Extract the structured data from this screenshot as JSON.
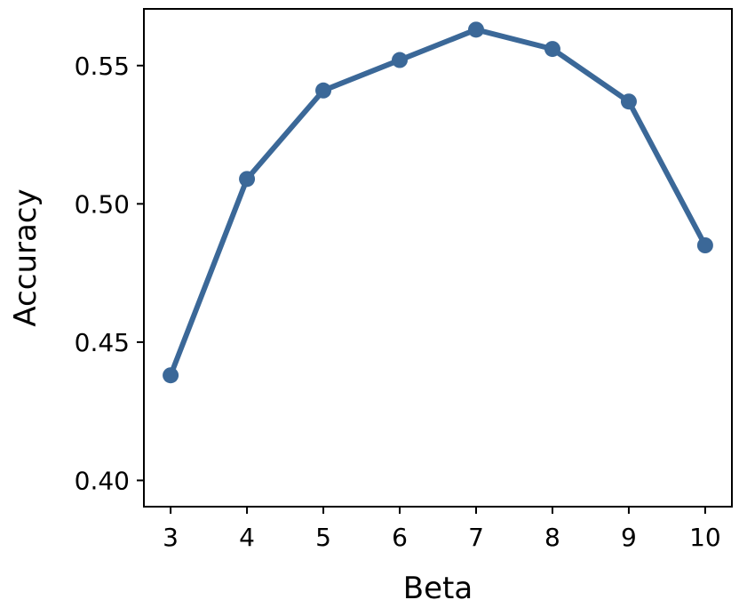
{
  "chart_data": {
    "type": "line",
    "title": "",
    "xlabel": "Beta",
    "ylabel": "Accuracy",
    "x": [
      3,
      4,
      5,
      6,
      7,
      8,
      9,
      10
    ],
    "series": [
      {
        "values": [
          0.438,
          0.509,
          0.541,
          0.552,
          0.563,
          0.556,
          0.537,
          0.485
        ]
      }
    ],
    "xlim": [
      2.65,
      10.35
    ],
    "ylim": [
      0.3905,
      0.5705
    ],
    "xticks": [
      "3",
      "4",
      "5",
      "6",
      "7",
      "8",
      "9",
      "10"
    ],
    "yticks": [
      "0.40",
      "0.45",
      "0.50",
      "0.55"
    ],
    "ytick_values": [
      0.4,
      0.45,
      0.5,
      0.55
    ],
    "grid": false,
    "legend": "none",
    "colors": {
      "line": "#3b6898",
      "axis": "#000000",
      "background": "#ffffff"
    }
  }
}
